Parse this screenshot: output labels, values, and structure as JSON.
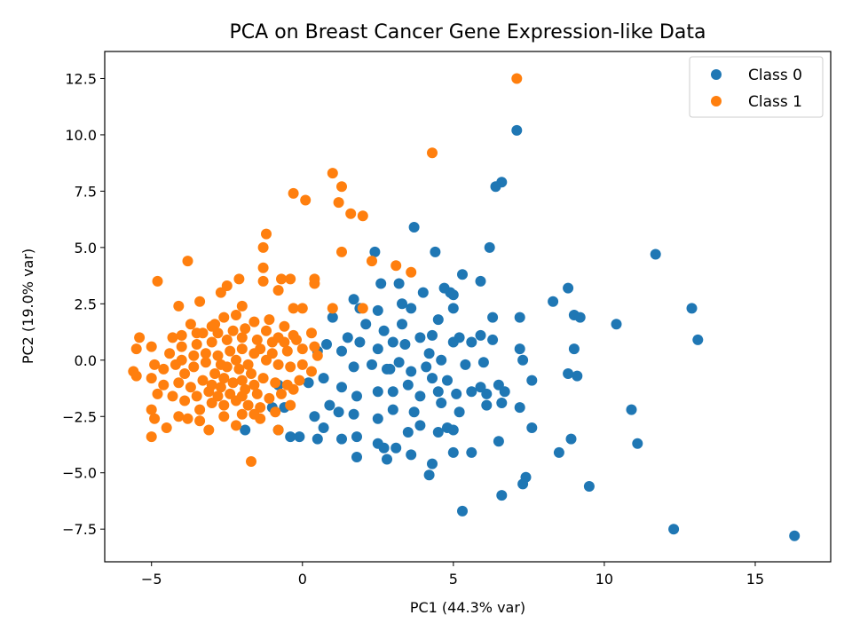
{
  "chart_data": {
    "type": "scatter",
    "title": "PCA on Breast Cancer Gene Expression-like Data",
    "xlabel": "PC1 (44.3% var)",
    "ylabel": "PC2 (19.0% var)",
    "xlim": [
      -6.55,
      17.5
    ],
    "ylim": [
      -8.95,
      13.7
    ],
    "xticks": [
      -5,
      0,
      5,
      10,
      15
    ],
    "xtick_labels": [
      "−5",
      "0",
      "5",
      "10",
      "15"
    ],
    "yticks": [
      -7.5,
      -5.0,
      -2.5,
      0.0,
      2.5,
      5.0,
      7.5,
      10.0,
      12.5
    ],
    "ytick_labels": [
      "−7.5",
      "−5.0",
      "−2.5",
      "0.0",
      "2.5",
      "5.0",
      "7.5",
      "10.0",
      "12.5"
    ],
    "grid": false,
    "legend_position": "top-right",
    "series": [
      {
        "name": "Class 0",
        "color": "#1f77b4",
        "points": [
          [
            7.1,
            10.2
          ],
          [
            6.6,
            7.9
          ],
          [
            6.4,
            7.7
          ],
          [
            11.7,
            4.7
          ],
          [
            3.7,
            5.9
          ],
          [
            4.4,
            4.8
          ],
          [
            6.2,
            5.0
          ],
          [
            2.4,
            4.8
          ],
          [
            5.3,
            3.8
          ],
          [
            2.6,
            3.4
          ],
          [
            3.2,
            3.4
          ],
          [
            4.0,
            3.0
          ],
          [
            5.0,
            2.9
          ],
          [
            4.9,
            3.0
          ],
          [
            4.7,
            3.2
          ],
          [
            5.9,
            3.5
          ],
          [
            8.8,
            3.2
          ],
          [
            8.3,
            2.6
          ],
          [
            12.9,
            2.3
          ],
          [
            13.1,
            0.9
          ],
          [
            10.4,
            1.6
          ],
          [
            9.0,
            2.0
          ],
          [
            9.2,
            1.9
          ],
          [
            7.2,
            1.9
          ],
          [
            6.3,
            1.9
          ],
          [
            5.0,
            2.3
          ],
          [
            4.5,
            1.8
          ],
          [
            3.6,
            2.3
          ],
          [
            3.3,
            2.5
          ],
          [
            2.5,
            2.2
          ],
          [
            1.7,
            2.7
          ],
          [
            1.9,
            2.3
          ],
          [
            1.0,
            1.9
          ],
          [
            2.1,
            1.6
          ],
          [
            2.7,
            1.3
          ],
          [
            3.3,
            1.6
          ],
          [
            3.9,
            1.0
          ],
          [
            4.3,
            1.1
          ],
          [
            5.2,
            1.0
          ],
          [
            5.9,
            1.1
          ],
          [
            6.3,
            0.9
          ],
          [
            7.2,
            0.5
          ],
          [
            9.0,
            0.5
          ],
          [
            1.5,
            1.0
          ],
          [
            1.9,
            0.8
          ],
          [
            2.5,
            0.5
          ],
          [
            3.0,
            0.8
          ],
          [
            3.4,
            0.7
          ],
          [
            4.2,
            0.3
          ],
          [
            5.0,
            0.8
          ],
          [
            5.6,
            0.8
          ],
          [
            0.8,
            0.7
          ],
          [
            0.5,
            0.4
          ],
          [
            1.3,
            0.4
          ],
          [
            1.7,
            -0.3
          ],
          [
            2.3,
            -0.2
          ],
          [
            2.8,
            -0.4
          ],
          [
            3.2,
            -0.1
          ],
          [
            4.1,
            -0.3
          ],
          [
            4.6,
            0.0
          ],
          [
            5.4,
            -0.2
          ],
          [
            6.0,
            -0.1
          ],
          [
            7.3,
            0.0
          ],
          [
            2.9,
            -0.4
          ],
          [
            3.6,
            -0.5
          ],
          [
            4.3,
            -0.8
          ],
          [
            4.8,
            -0.9
          ],
          [
            5.9,
            -1.2
          ],
          [
            6.5,
            -1.1
          ],
          [
            7.6,
            -0.9
          ],
          [
            8.8,
            -0.6
          ],
          [
            9.1,
            -0.7
          ],
          [
            0.2,
            -1.0
          ],
          [
            0.7,
            -0.8
          ],
          [
            1.3,
            -1.2
          ],
          [
            1.8,
            -1.6
          ],
          [
            2.5,
            -1.4
          ],
          [
            3.0,
            -1.4
          ],
          [
            3.5,
            -1.1
          ],
          [
            3.9,
            -1.6
          ],
          [
            4.5,
            -1.4
          ],
          [
            5.1,
            -1.5
          ],
          [
            5.6,
            -1.4
          ],
          [
            6.1,
            -1.5
          ],
          [
            6.7,
            -1.4
          ],
          [
            6.6,
            -1.9
          ],
          [
            7.2,
            -2.1
          ],
          [
            6.1,
            -2.0
          ],
          [
            5.2,
            -2.3
          ],
          [
            4.6,
            -1.9
          ],
          [
            3.7,
            -2.3
          ],
          [
            3.0,
            -2.2
          ],
          [
            2.5,
            -2.6
          ],
          [
            1.7,
            -2.4
          ],
          [
            1.2,
            -2.3
          ],
          [
            0.9,
            -2.0
          ],
          [
            0.4,
            -2.5
          ],
          [
            0.7,
            -3.0
          ],
          [
            1.3,
            -3.5
          ],
          [
            1.8,
            -3.4
          ],
          [
            2.5,
            -3.7
          ],
          [
            3.1,
            -3.9
          ],
          [
            3.5,
            -3.2
          ],
          [
            3.9,
            -2.9
          ],
          [
            4.5,
            -3.2
          ],
          [
            4.8,
            -3.0
          ],
          [
            5.0,
            -3.1
          ],
          [
            5.6,
            -4.1
          ],
          [
            6.5,
            -3.6
          ],
          [
            7.6,
            -3.0
          ],
          [
            8.9,
            -3.5
          ],
          [
            10.9,
            -2.2
          ],
          [
            11.1,
            -3.7
          ],
          [
            8.5,
            -4.1
          ],
          [
            7.4,
            -5.2
          ],
          [
            7.3,
            -5.5
          ],
          [
            6.6,
            -6.0
          ],
          [
            5.3,
            -6.7
          ],
          [
            4.2,
            -5.1
          ],
          [
            4.3,
            -4.6
          ],
          [
            3.6,
            -4.2
          ],
          [
            2.8,
            -4.4
          ],
          [
            1.8,
            -4.3
          ],
          [
            2.7,
            -3.9
          ],
          [
            9.5,
            -5.6
          ],
          [
            12.3,
            -7.5
          ],
          [
            16.3,
            -7.8
          ],
          [
            5.0,
            -4.1
          ],
          [
            -0.1,
            -3.4
          ],
          [
            -0.8,
            -3.1
          ],
          [
            -0.4,
            -3.4
          ],
          [
            -1.9,
            -3.1
          ],
          [
            -1.0,
            -2.1
          ],
          [
            -0.6,
            -2.1
          ],
          [
            0.5,
            -3.5
          ],
          [
            -0.8,
            -1.1
          ]
        ]
      },
      {
        "name": "Class 1",
        "color": "#ff7f0e",
        "points": [
          [
            7.1,
            12.5
          ],
          [
            4.3,
            9.2
          ],
          [
            1.0,
            8.3
          ],
          [
            1.3,
            7.7
          ],
          [
            -0.3,
            7.4
          ],
          [
            0.1,
            7.1
          ],
          [
            1.2,
            7.0
          ],
          [
            1.6,
            6.5
          ],
          [
            2.0,
            6.4
          ],
          [
            -1.2,
            5.6
          ],
          [
            -1.3,
            5.0
          ],
          [
            1.3,
            4.8
          ],
          [
            -1.3,
            4.1
          ],
          [
            2.3,
            4.4
          ],
          [
            3.1,
            4.2
          ],
          [
            3.6,
            3.9
          ],
          [
            -3.8,
            4.4
          ],
          [
            -4.8,
            3.5
          ],
          [
            -0.7,
            3.6
          ],
          [
            -0.4,
            3.6
          ],
          [
            0.4,
            3.6
          ],
          [
            0.4,
            3.4
          ],
          [
            -0.8,
            3.1
          ],
          [
            -1.3,
            3.5
          ],
          [
            -2.1,
            3.6
          ],
          [
            -2.5,
            3.3
          ],
          [
            -2.7,
            3.0
          ],
          [
            -3.4,
            2.6
          ],
          [
            -4.1,
            2.4
          ],
          [
            -2.0,
            2.4
          ],
          [
            0.0,
            2.3
          ],
          [
            1.0,
            2.3
          ],
          [
            2.0,
            2.3
          ],
          [
            -0.3,
            2.3
          ],
          [
            -5.0,
            0.6
          ],
          [
            -5.4,
            1.0
          ],
          [
            -5.5,
            0.5
          ],
          [
            -5.6,
            -0.5
          ],
          [
            -5.5,
            -0.7
          ],
          [
            -5.0,
            -0.8
          ],
          [
            -4.8,
            -1.5
          ],
          [
            -5.0,
            -2.2
          ],
          [
            -4.9,
            -2.6
          ],
          [
            -5.0,
            -3.4
          ],
          [
            -4.5,
            -3.0
          ],
          [
            -4.1,
            -2.5
          ],
          [
            -3.4,
            -2.7
          ],
          [
            -3.1,
            -3.1
          ],
          [
            -2.6,
            -2.5
          ],
          [
            -2.0,
            -2.4
          ],
          [
            -1.4,
            -2.6
          ],
          [
            -0.8,
            -3.1
          ],
          [
            -1.7,
            -4.5
          ],
          [
            -4.0,
            1.1
          ],
          [
            -3.5,
            1.2
          ],
          [
            -3.0,
            1.5
          ],
          [
            -2.6,
            1.9
          ],
          [
            -2.2,
            2.0
          ],
          [
            -1.6,
            1.7
          ],
          [
            -1.1,
            1.8
          ],
          [
            -0.6,
            1.5
          ],
          [
            -0.3,
            1.1
          ],
          [
            0.3,
            1.2
          ],
          [
            0.4,
            0.6
          ],
          [
            0.5,
            0.2
          ],
          [
            0.0,
            0.5
          ],
          [
            -0.5,
            0.4
          ],
          [
            -1.0,
            0.8
          ],
          [
            -1.5,
            0.9
          ],
          [
            -2.0,
            1.0
          ],
          [
            -2.5,
            0.9
          ],
          [
            -3.0,
            0.8
          ],
          [
            -3.5,
            0.7
          ],
          [
            -4.0,
            0.6
          ],
          [
            -4.4,
            0.3
          ],
          [
            -4.2,
            -0.2
          ],
          [
            -3.9,
            -0.6
          ],
          [
            -3.6,
            -0.3
          ],
          [
            -3.2,
            -0.1
          ],
          [
            -2.8,
            0.2
          ],
          [
            -2.4,
            0.4
          ],
          [
            -2.0,
            0.5
          ],
          [
            -1.6,
            0.3
          ],
          [
            -1.2,
            0.0
          ],
          [
            -0.8,
            -0.2
          ],
          [
            -0.4,
            -0.3
          ],
          [
            0.0,
            -0.2
          ],
          [
            0.3,
            -0.5
          ],
          [
            -0.1,
            -0.9
          ],
          [
            -0.5,
            -1.1
          ],
          [
            -0.9,
            -1.0
          ],
          [
            -1.3,
            -0.8
          ],
          [
            -1.7,
            -0.6
          ],
          [
            -2.1,
            -0.4
          ],
          [
            -2.5,
            -0.3
          ],
          [
            -2.9,
            -0.6
          ],
          [
            -3.3,
            -0.9
          ],
          [
            -3.7,
            -1.2
          ],
          [
            -4.1,
            -1.0
          ],
          [
            -4.6,
            -1.1
          ],
          [
            -4.3,
            -1.6
          ],
          [
            -3.9,
            -1.8
          ],
          [
            -3.5,
            -1.6
          ],
          [
            -3.1,
            -1.4
          ],
          [
            -2.7,
            -1.2
          ],
          [
            -2.3,
            -1.0
          ],
          [
            -1.9,
            -1.3
          ],
          [
            -1.5,
            -1.5
          ],
          [
            -1.1,
            -1.7
          ],
          [
            -0.7,
            -1.5
          ],
          [
            -0.3,
            -1.3
          ],
          [
            -2.2,
            -1.8
          ],
          [
            -2.6,
            -2.0
          ],
          [
            -3.0,
            -1.9
          ],
          [
            -3.4,
            -2.2
          ],
          [
            -2.8,
            -1.6
          ],
          [
            -2.4,
            -1.5
          ],
          [
            -2.0,
            -1.6
          ],
          [
            -1.8,
            -2.0
          ],
          [
            -1.4,
            -2.1
          ],
          [
            -3.2,
            0.3
          ],
          [
            -2.7,
            -0.2
          ],
          [
            -2.2,
            0.0
          ],
          [
            -1.8,
            -0.2
          ],
          [
            -1.4,
            0.5
          ],
          [
            -1.0,
            0.3
          ],
          [
            -0.6,
            0.8
          ],
          [
            -0.2,
            0.9
          ],
          [
            -3.6,
            0.2
          ],
          [
            -4.0,
            0.0
          ],
          [
            -1.9,
            1.4
          ],
          [
            -2.3,
            1.3
          ],
          [
            -2.8,
            1.2
          ],
          [
            -3.3,
            1.2
          ],
          [
            -1.2,
            1.3
          ],
          [
            -0.8,
            1.0
          ],
          [
            -2.6,
            -0.8
          ],
          [
            -2.0,
            -0.9
          ],
          [
            -3.0,
            -1.1
          ],
          [
            -1.6,
            -1.1
          ],
          [
            -4.6,
            -0.4
          ],
          [
            -4.9,
            -0.2
          ],
          [
            -3.8,
            -2.6
          ],
          [
            -2.2,
            -2.9
          ],
          [
            -1.6,
            -2.4
          ],
          [
            -0.4,
            -2.0
          ],
          [
            -0.9,
            -2.3
          ],
          [
            -2.9,
            1.6
          ],
          [
            -3.7,
            1.6
          ],
          [
            -4.3,
            1.0
          ]
        ]
      }
    ]
  }
}
